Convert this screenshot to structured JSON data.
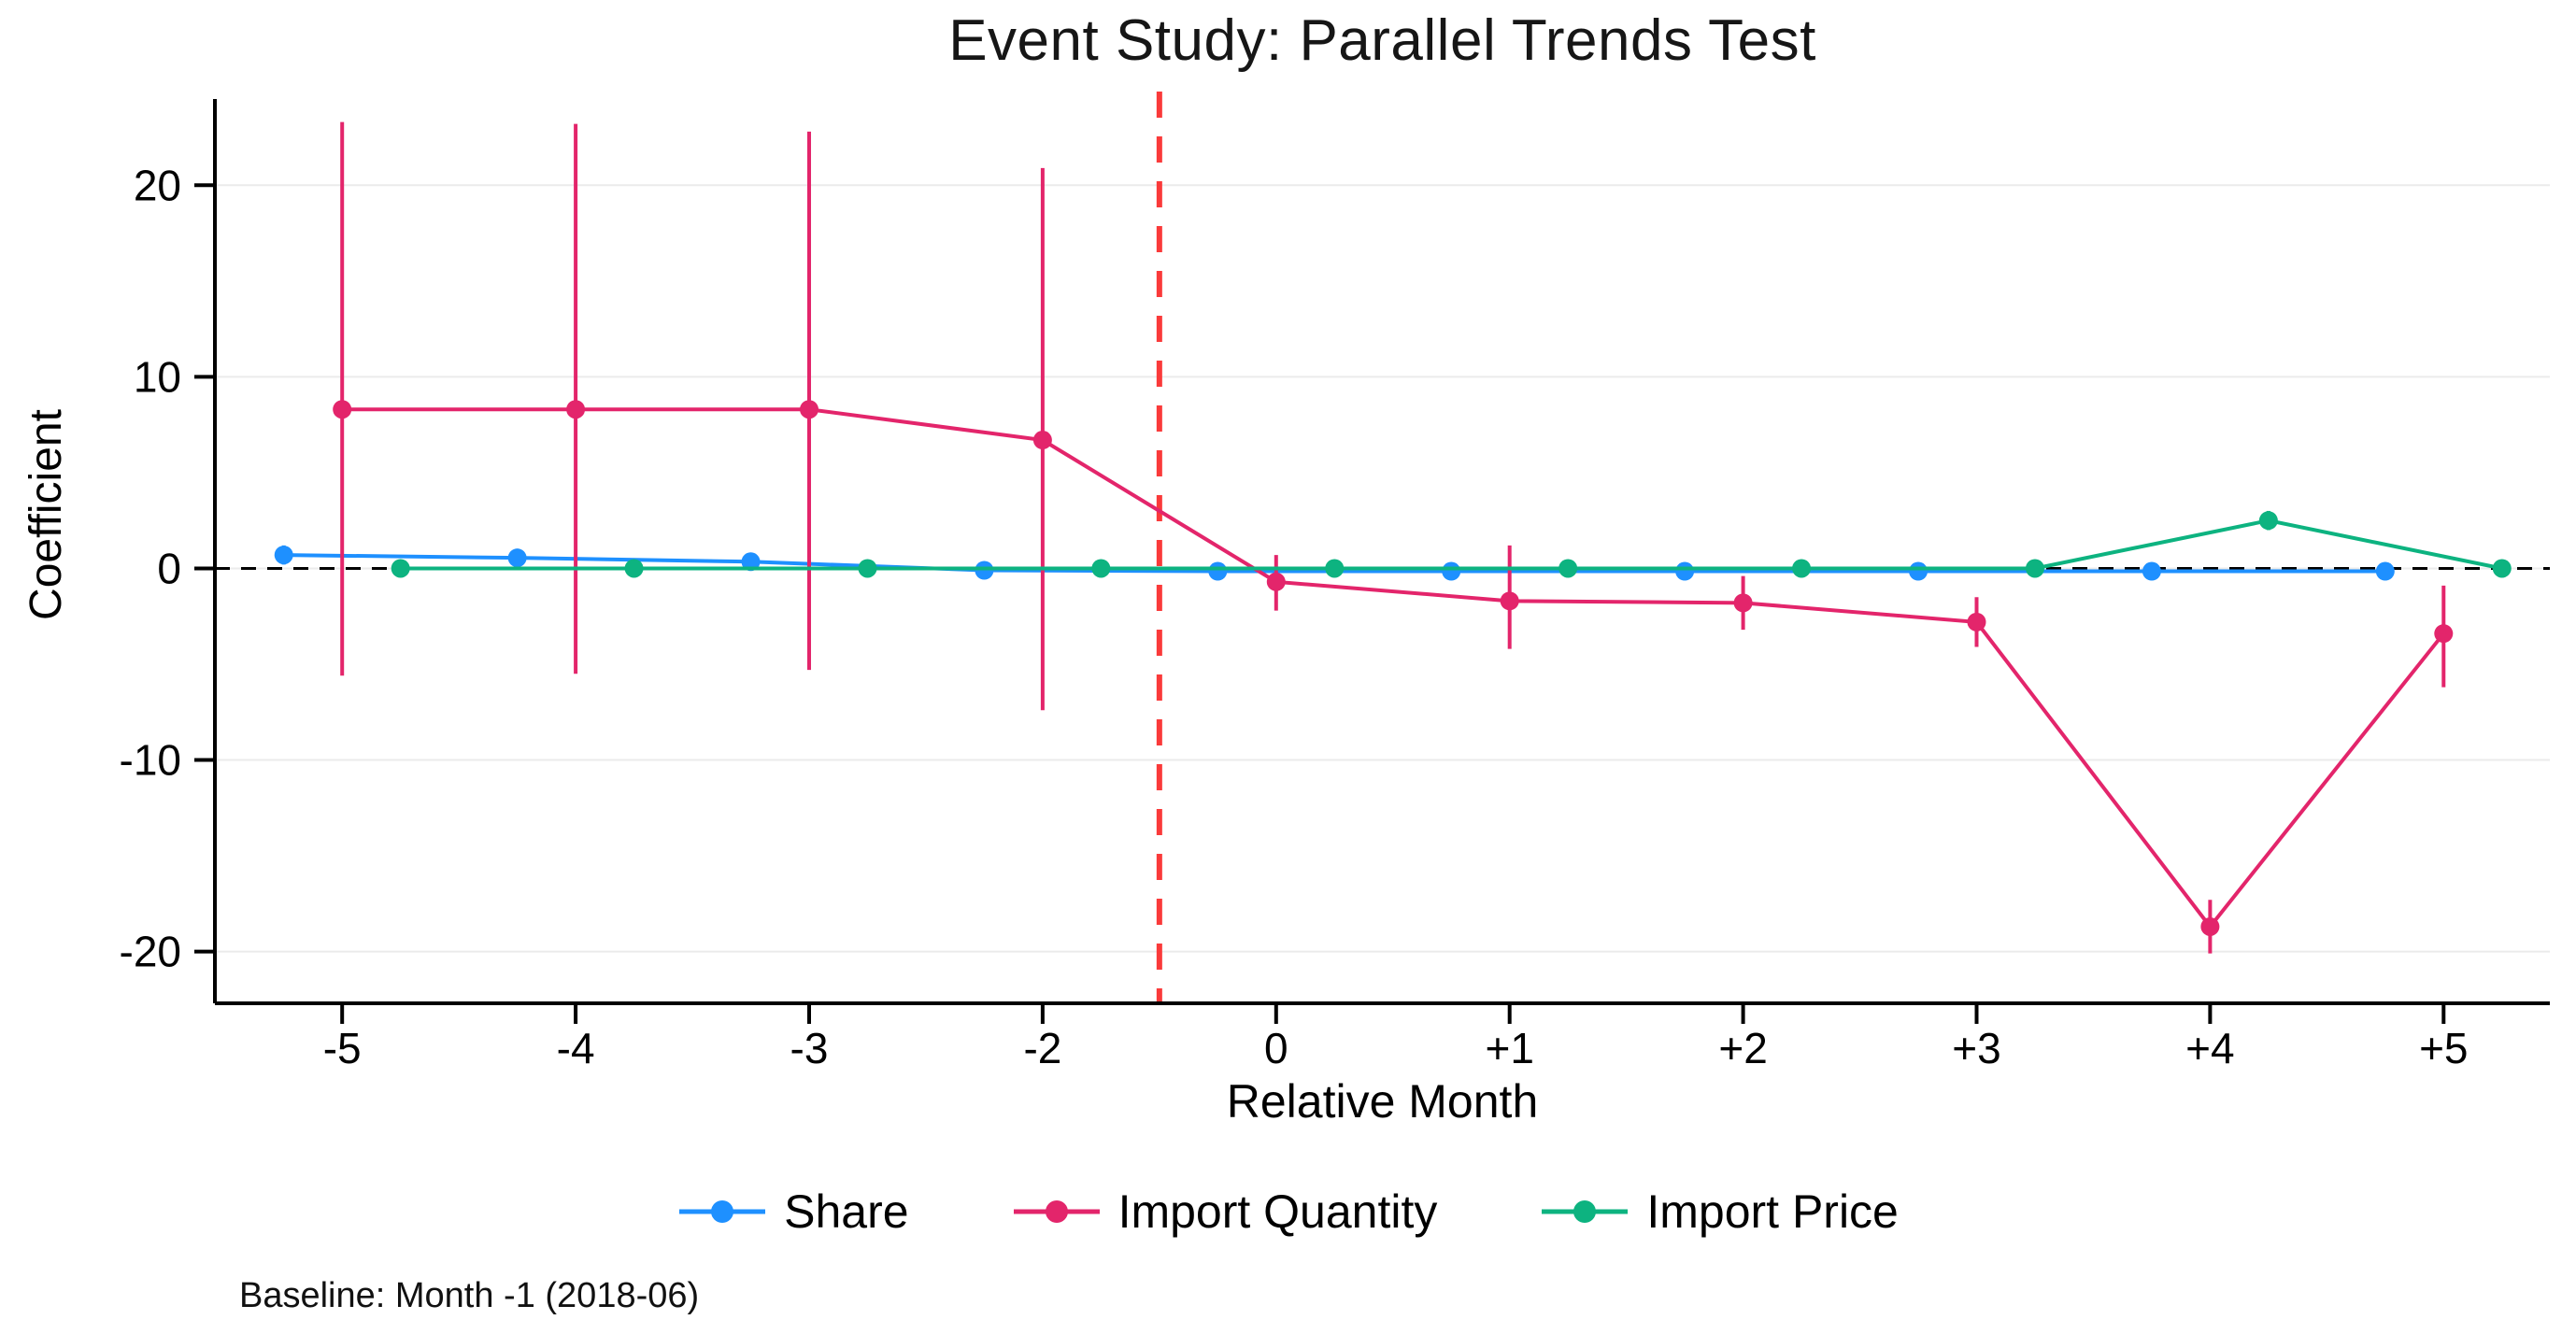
{
  "chart_data": {
    "type": "line",
    "title": "Event Study: Parallel Trends Test",
    "xlabel": "Relative Month",
    "ylabel": "Coefficient",
    "baseline_note": "Baseline: Month -1 (2018-06)",
    "categories": [
      "-5",
      "-4",
      "-3",
      "-2",
      "0",
      "+1",
      "+2",
      "+3",
      "+4",
      "+5"
    ],
    "y_ticks": [
      -20,
      -10,
      0,
      10,
      20
    ],
    "ylim": [
      -22.7,
      24.5
    ],
    "grid": "horizontal-faint",
    "legend_position": "bottom",
    "colors": {
      "axis": "#000000",
      "grid": "#ebebeb",
      "zero_line": "#000000",
      "treatment_line": "#fa3a3a"
    },
    "reference_lines": {
      "horizontal_zero": {
        "y": 0,
        "color": "#000000",
        "style": "dashed"
      },
      "treatment": {
        "position_index": 3.5,
        "between_categories": [
          "-2",
          "0"
        ],
        "color": "#fa3a3a",
        "style": "dashed",
        "orientation": "vertical"
      }
    },
    "series": [
      {
        "name": "Share",
        "color": "#1E90FF",
        "values": [
          0.7,
          0.55,
          0.35,
          -0.1,
          -0.15,
          -0.15,
          -0.15,
          -0.15,
          -0.15,
          -0.15
        ],
        "ci_low": [
          0.2,
          0.1,
          -0.1,
          -0.5,
          -0.5,
          -0.5,
          -0.5,
          -0.5,
          -0.5,
          -0.5
        ],
        "ci_high": [
          1.2,
          1.0,
          0.8,
          0.3,
          0.2,
          0.2,
          0.2,
          0.2,
          0.2,
          0.2
        ]
      },
      {
        "name": "Import Quantity",
        "color": "#E3256B",
        "values": [
          8.3,
          8.3,
          8.3,
          6.7,
          -0.7,
          -1.7,
          -1.8,
          -2.8,
          -18.7,
          -3.4
        ],
        "ci_low": [
          -5.6,
          -5.5,
          -5.3,
          -7.4,
          -2.2,
          -4.2,
          -3.2,
          -4.1,
          -20.1,
          -6.2
        ],
        "ci_high": [
          23.3,
          23.2,
          22.8,
          20.9,
          0.7,
          1.2,
          -0.4,
          -1.5,
          -17.3,
          -0.9
        ]
      },
      {
        "name": "Import Price",
        "color": "#0DB380",
        "values": [
          0,
          0,
          0,
          0,
          0,
          0,
          0,
          0,
          2.5,
          0
        ],
        "ci_low": [
          -0.4,
          -0.4,
          -0.4,
          -0.4,
          -0.4,
          -0.4,
          -0.4,
          -0.4,
          2.0,
          -0.4
        ],
        "ci_high": [
          0.4,
          0.4,
          0.4,
          0.4,
          0.4,
          0.4,
          0.4,
          0.4,
          3.0,
          0.4
        ]
      }
    ]
  }
}
